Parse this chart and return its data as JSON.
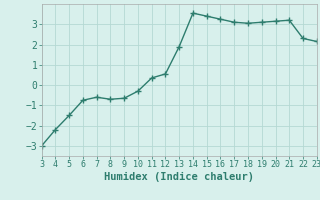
{
  "x": [
    3,
    4,
    5,
    6,
    7,
    8,
    9,
    10,
    11,
    12,
    13,
    14,
    15,
    16,
    17,
    18,
    19,
    20,
    21,
    22,
    23
  ],
  "y": [
    -3.0,
    -2.2,
    -1.5,
    -0.75,
    -0.6,
    -0.7,
    -0.65,
    -0.3,
    0.35,
    0.55,
    1.9,
    3.55,
    3.4,
    3.25,
    3.1,
    3.05,
    3.1,
    3.15,
    3.2,
    2.3,
    2.15
  ],
  "line_color": "#2e7d6e",
  "marker": "+",
  "marker_size": 4,
  "linewidth": 1.0,
  "bg_color": "#d8f0ec",
  "grid_color": "#b5d9d3",
  "xlabel": "Humidex (Indice chaleur)",
  "xlabel_fontsize": 7.5,
  "xlim": [
    3,
    23
  ],
  "ylim": [
    -3.5,
    4.0
  ],
  "yticks": [
    -3,
    -2,
    -1,
    0,
    1,
    2,
    3
  ],
  "xticks": [
    3,
    4,
    5,
    6,
    7,
    8,
    9,
    10,
    11,
    12,
    13,
    14,
    15,
    16,
    17,
    18,
    19,
    20,
    21,
    22,
    23
  ],
  "ytick_fontsize": 7,
  "xtick_fontsize": 6
}
